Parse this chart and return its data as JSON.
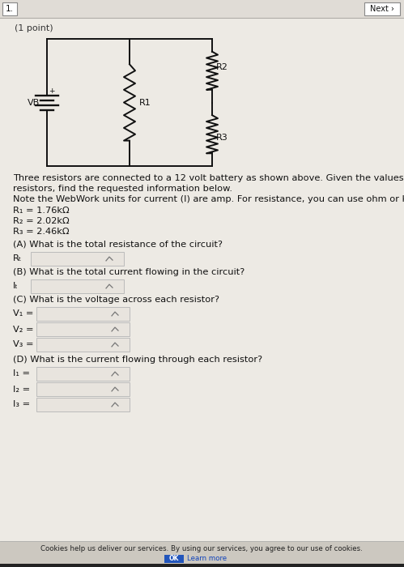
{
  "bg_color": "#cdc8c0",
  "page_bg": "#edeae4",
  "header_bg": "#e0dcd6",
  "header_num": "1.",
  "header_next": "Next ›",
  "point_label": "(1 point)",
  "problem_text_line1": "Three resistors are connected to a 12 volt battery as shown above. Given the values of the",
  "problem_text_line2": "resistors, find the requested information below.",
  "problem_text_line3": "Note the WebWork units for current (I) are amp. For resistance, you can use ohm or kohm.",
  "R1_val": "R₁ = 1.76kΩ",
  "R2_val": "R₂ = 2.02kΩ",
  "R3_val": "R₃ = 2.46kΩ",
  "qA": "(A) What is the total resistance of the circuit?",
  "qB": "(B) What is the total current flowing in the circuit?",
  "qC": "(C) What is the voltage across each resistor?",
  "qD": "(D) What is the current flowing through each resistor?",
  "label_RT": "Rₜ",
  "label_IT": "Iₜ",
  "label_V1": "V₁ =",
  "label_V2": "V₂ =",
  "label_V3": "V₃ =",
  "label_I1": "I₁ =",
  "label_I2": "I₂ =",
  "label_I3": "I₃ =",
  "cookie_text": "Cookies help us deliver our services. By using our services, you agree to our use of cookies.",
  "ok_text": "OK",
  "learn_text": "Learn more",
  "input_bg": "#e8e4de",
  "input_border": "#bbbbbb",
  "ok_bg": "#2255bb",
  "ok_text_color": "#ffffff",
  "footer_bg": "#ccc8c0",
  "circuit_line_color": "#111111",
  "VB_label": "VB",
  "R1_label": "R1",
  "R2_label": "R2",
  "R3_label": "R3",
  "plus_label": "+"
}
